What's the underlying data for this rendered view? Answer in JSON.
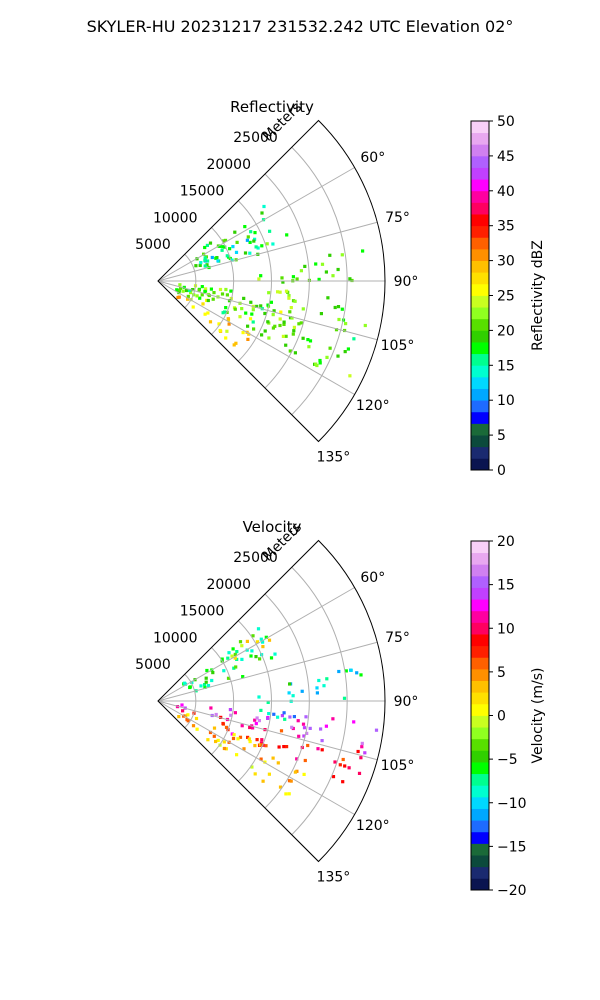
{
  "figure": {
    "title": "SKYLER-HU  20231217  231532.242 UTC Elevation 02°"
  },
  "chart_data": [
    {
      "type": "heatmap",
      "subtype": "polar-sector-radar-ppi",
      "title": "Reflectivity",
      "radial_axis_label": "Meters",
      "radial_ticks": [
        "5000",
        "10000",
        "15000",
        "20000",
        "25000"
      ],
      "radial_tick_values": [
        5000,
        10000,
        15000,
        20000,
        25000
      ],
      "r_max": 30000,
      "azimuth_ticks": [
        "60°",
        "75°",
        "90°",
        "105°",
        "120°",
        "135°"
      ],
      "azimuth_tick_values": [
        60,
        75,
        90,
        105,
        120,
        135
      ],
      "azimuth_range": [
        45,
        135
      ],
      "grid": true,
      "colorbar": {
        "label": "Reflectivity dBZ",
        "range": [
          0,
          50
        ],
        "ticks": [
          "0",
          "5",
          "10",
          "15",
          "20",
          "25",
          "30",
          "35",
          "40",
          "45",
          "50"
        ],
        "tick_values": [
          0,
          5,
          10,
          15,
          20,
          25,
          30,
          35,
          40,
          45,
          50
        ],
        "palette": [
          "#0a1450",
          "#1a2a70",
          "#0c4a3c",
          "#1a6a38",
          "#0000ff",
          "#1e6bff",
          "#00a8ff",
          "#00d8ff",
          "#00ffd0",
          "#00ff90",
          "#00ff00",
          "#30d000",
          "#58e000",
          "#90ff20",
          "#c8ff20",
          "#ffff00",
          "#ffe000",
          "#ffc000",
          "#ff9000",
          "#ff6000",
          "#ff2000",
          "#ff0000",
          "#ff0060",
          "#ff00a0",
          "#ff00ff",
          "#c040ff",
          "#b060ff",
          "#d080f0",
          "#e8a8f0",
          "#f8d0f8"
        ]
      },
      "echo_regions": [
        {
          "az": [
            52,
            74
          ],
          "r": [
            4000,
            18000
          ],
          "value": 18
        },
        {
          "az": [
            60,
            72
          ],
          "r": [
            6000,
            13000
          ],
          "value": 13
        },
        {
          "az": [
            95,
            118
          ],
          "r": [
            2000,
            29000
          ],
          "value": 20
        },
        {
          "az": [
            100,
            112
          ],
          "r": [
            3000,
            20000
          ],
          "value": 22
        },
        {
          "az": [
            116,
            130
          ],
          "r": [
            3000,
            14000
          ],
          "value": 27
        },
        {
          "az": [
            80,
            90
          ],
          "r": [
            17000,
            28000
          ],
          "value": 19
        },
        {
          "az": [
            85,
            98
          ],
          "r": [
            13000,
            18000
          ],
          "value": 21
        }
      ]
    },
    {
      "type": "heatmap",
      "subtype": "polar-sector-radar-ppi",
      "title": "Velocity",
      "radial_axis_label": "Meters",
      "radial_ticks": [
        "5000",
        "10000",
        "15000",
        "20000",
        "25000"
      ],
      "radial_tick_values": [
        5000,
        10000,
        15000,
        20000,
        25000
      ],
      "r_max": 30000,
      "azimuth_ticks": [
        "60°",
        "75°",
        "90°",
        "105°",
        "120°",
        "135°"
      ],
      "azimuth_tick_values": [
        60,
        75,
        90,
        105,
        120,
        135
      ],
      "azimuth_range": [
        45,
        135
      ],
      "grid": true,
      "colorbar": {
        "label": "Velocity (m/s)",
        "range": [
          -20,
          20
        ],
        "ticks": [
          "−20",
          "−15",
          "−10",
          "−5",
          "0",
          "5",
          "10",
          "15",
          "20"
        ],
        "tick_values": [
          -20,
          -15,
          -10,
          -5,
          0,
          5,
          10,
          15,
          20
        ],
        "palette": [
          "#0a1450",
          "#1a2a70",
          "#0c4a3c",
          "#1a6a38",
          "#0000ff",
          "#1e6bff",
          "#00a8ff",
          "#00d8ff",
          "#00ffd0",
          "#00ff90",
          "#00ff00",
          "#30d000",
          "#58e000",
          "#90ff20",
          "#c8ff20",
          "#ffff00",
          "#ffe000",
          "#ffc000",
          "#ff9000",
          "#ff6000",
          "#ff2000",
          "#ff0000",
          "#ff0060",
          "#ff00a0",
          "#ff00ff",
          "#c040ff",
          "#b060ff",
          "#d080f0",
          "#e8a8f0",
          "#f8d0f8"
        ]
      },
      "echo_regions": [
        {
          "az": [
            52,
            74
          ],
          "r": [
            4000,
            18000
          ],
          "value": -6
        },
        {
          "az": [
            55,
            62
          ],
          "r": [
            10000,
            17000
          ],
          "value": 1
        },
        {
          "az": [
            95,
            104
          ],
          "r": [
            2000,
            29000
          ],
          "value": 14
        },
        {
          "az": [
            103,
            114
          ],
          "r": [
            3000,
            29000
          ],
          "value": 9
        },
        {
          "az": [
            112,
            128
          ],
          "r": [
            3000,
            22000
          ],
          "value": 3
        },
        {
          "az": [
            80,
            90
          ],
          "r": [
            17000,
            28000
          ],
          "value": -8
        },
        {
          "az": [
            85,
            98
          ],
          "r": [
            13000,
            18000
          ],
          "value": -11
        }
      ]
    }
  ]
}
